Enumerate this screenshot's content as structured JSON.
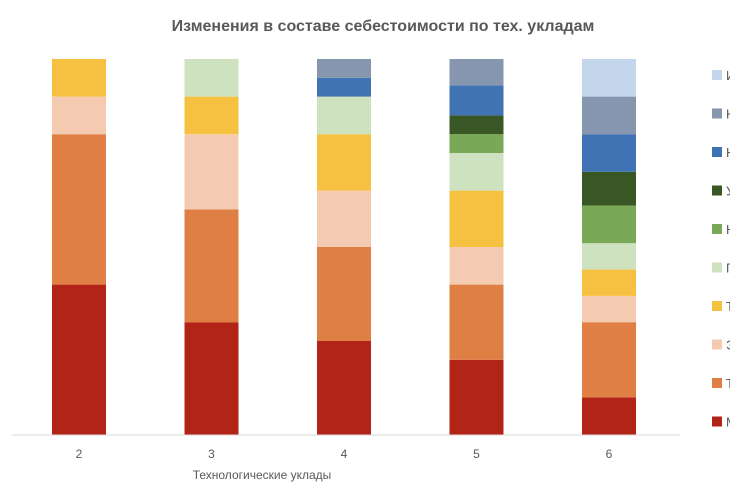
{
  "chart_data": {
    "type": "bar",
    "stacked": true,
    "title": "Изменения в составе себестоимости по тех. укладам",
    "xlabel": "Технологические уклады",
    "ylabel": "",
    "categories": [
      "2",
      "3",
      "4",
      "5",
      "6"
    ],
    "ylim": [
      0,
      100
    ],
    "grid": false,
    "legend_position": "right",
    "series": [
      {
        "name": "М",
        "color": "#b22417",
        "values": [
          40,
          30,
          25,
          20,
          10
        ]
      },
      {
        "name": "Т",
        "color": "#e07f43",
        "values": [
          40,
          30,
          25,
          20,
          20
        ]
      },
      {
        "name": "Э",
        "color": "#f4cbb0",
        "values": [
          10,
          20,
          15,
          10,
          7
        ]
      },
      {
        "name": "Т",
        "color": "#f6c140",
        "values": [
          10,
          10,
          15,
          15,
          7
        ]
      },
      {
        "name": "П",
        "color": "#cfe2c0",
        "values": [
          0,
          10,
          10,
          10,
          7
        ]
      },
      {
        "name": "Н",
        "color": "#79a956",
        "values": [
          0,
          0,
          0,
          5,
          10
        ]
      },
      {
        "name": "У",
        "color": "#385724",
        "values": [
          0,
          0,
          0,
          5,
          9
        ]
      },
      {
        "name": "Н",
        "color": "#3f73b4",
        "values": [
          0,
          0,
          5,
          8,
          10
        ]
      },
      {
        "name": "Н",
        "color": "#8696ae",
        "values": [
          0,
          0,
          5,
          7,
          10
        ]
      },
      {
        "name": "И",
        "color": "#c4d6ec",
        "values": [
          0,
          0,
          0,
          0,
          10
        ]
      }
    ]
  }
}
